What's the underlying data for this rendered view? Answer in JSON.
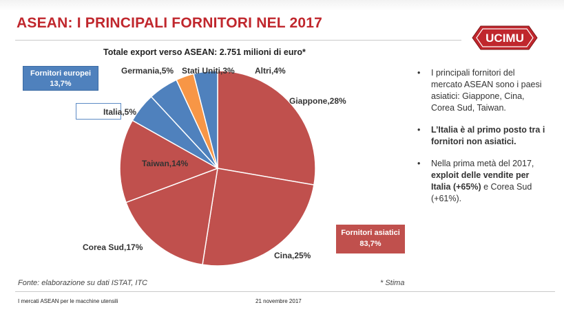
{
  "slide": {
    "title": "ASEAN: I PRINCIPALI FORNITORI NEL 2017",
    "logo_text": "UCIMU"
  },
  "chart_data": {
    "type": "pie",
    "title": "Totale export verso ASEAN: 2.751 milioni di euro*",
    "slices": [
      {
        "label": "Giappone,28%",
        "value": 28,
        "color": "#c0504d"
      },
      {
        "label": "Cina,25%",
        "value": 25,
        "color": "#c0504d"
      },
      {
        "label": "Corea Sud,17%",
        "value": 17,
        "color": "#c0504d"
      },
      {
        "label": "Taiwan,14%",
        "value": 14,
        "color": "#c0504d"
      },
      {
        "label": "Italia,5%",
        "value": 5,
        "color": "#4f81bd"
      },
      {
        "label": "Germania,5%",
        "value": 5,
        "color": "#4f81bd"
      },
      {
        "label": "Stati Uniti,3%",
        "value": 3,
        "color": "#f79646"
      },
      {
        "label": "Altri,4%",
        "value": 4,
        "color": "#4f81bd"
      }
    ],
    "group_labels": {
      "europe": [
        "Fornitori europei",
        "13,7%"
      ],
      "asia": [
        "Fornitori asiatici",
        "83,7%"
      ]
    }
  },
  "bullets": [
    {
      "dot": "•",
      "parts": [
        {
          "text": "I principali fornitori del mercato ASEAN sono i paesi asiatici: Giappone, Cina, Corea Sud, Taiwan.",
          "bold": false
        }
      ]
    },
    {
      "dot": "•",
      "parts": [
        {
          "text": "L’Italia è al primo posto tra i fornitori non asiatici.",
          "bold": true
        }
      ]
    },
    {
      "dot": "•",
      "parts": [
        {
          "text": "Nella prima metà del 2017, ",
          "bold": false
        },
        {
          "text": "exploit delle vendite per Italia (+65%)",
          "bold": true
        },
        {
          "text": " e Corea Sud (+61%).",
          "bold": false
        }
      ]
    }
  ],
  "source": "Fonte: elaborazione su dati ISTAT, ITC",
  "note": "* Stima",
  "footer": {
    "left": "I mercati ASEAN per le macchine utensili",
    "date": "21 novembre 2017"
  },
  "colors": {
    "title": "#c0272d",
    "asia": "#c0504d",
    "europe": "#4f81bd",
    "usa": "#f79646"
  }
}
